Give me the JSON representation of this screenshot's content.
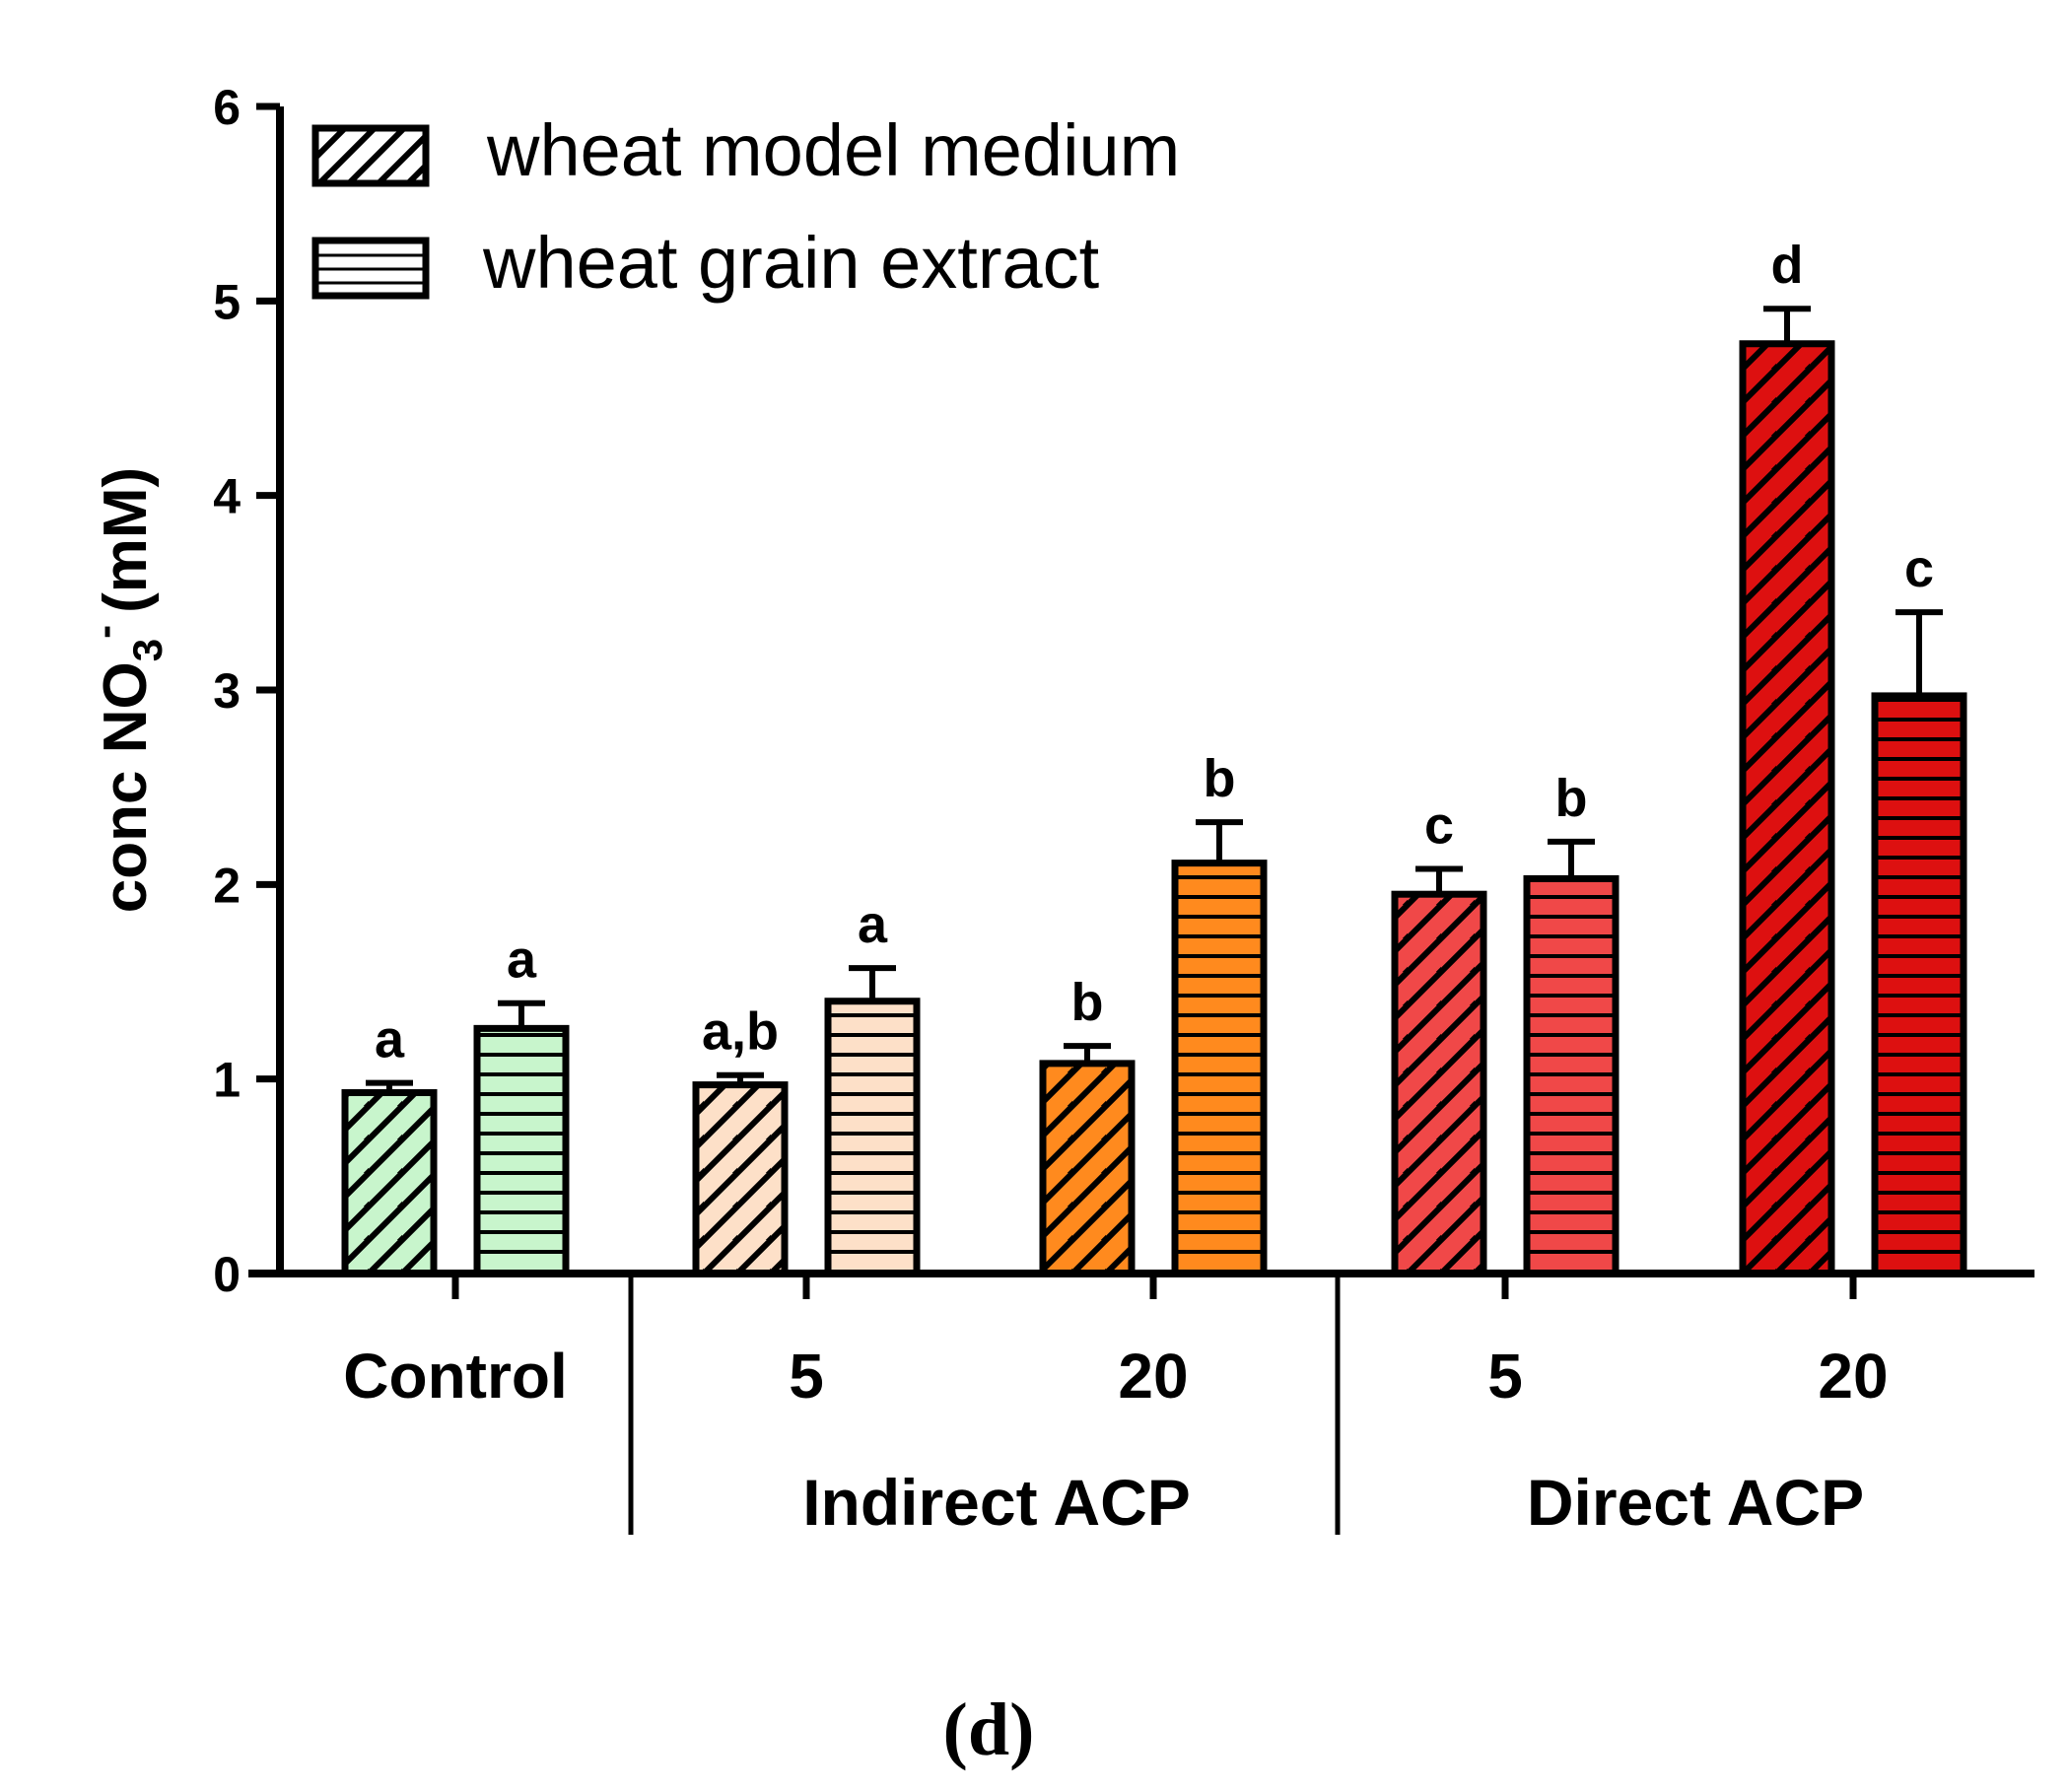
{
  "chart_data": {
    "type": "bar",
    "ylabel": {
      "main": "conc NO",
      "sub": "3",
      "sup": "-",
      "unit": "(mM)"
    },
    "ylim": [
      0,
      6
    ],
    "yticks": [
      0,
      1,
      2,
      3,
      4,
      5,
      6
    ],
    "categories": [
      "Control",
      "5",
      "20",
      "5",
      "20"
    ],
    "groups": [
      {
        "label": "Indirect ACP",
        "categories": [
          1,
          2
        ]
      },
      {
        "label": "Direct ACP",
        "categories": [
          3,
          4
        ]
      }
    ],
    "series": [
      {
        "name": "wheat model medium",
        "pattern": "diagonal",
        "values": [
          0.93,
          0.97,
          1.08,
          1.95,
          4.78
        ],
        "errors": [
          0.05,
          0.05,
          0.09,
          0.13,
          0.18
        ],
        "significance": [
          "a",
          "a,b",
          "b",
          "c",
          "d"
        ]
      },
      {
        "name": "wheat grain extract",
        "pattern": "horizontal",
        "values": [
          1.26,
          1.4,
          2.11,
          2.03,
          2.97
        ],
        "errors": [
          0.13,
          0.17,
          0.21,
          0.19,
          0.43
        ],
        "significance": [
          "a",
          "a",
          "b",
          "b",
          "c"
        ]
      }
    ],
    "colors": [
      "#c8f5cc",
      "#fde0c8",
      "#ff8a1e",
      "#f04848",
      "#dd1010"
    ],
    "panel_label": "(d)"
  }
}
